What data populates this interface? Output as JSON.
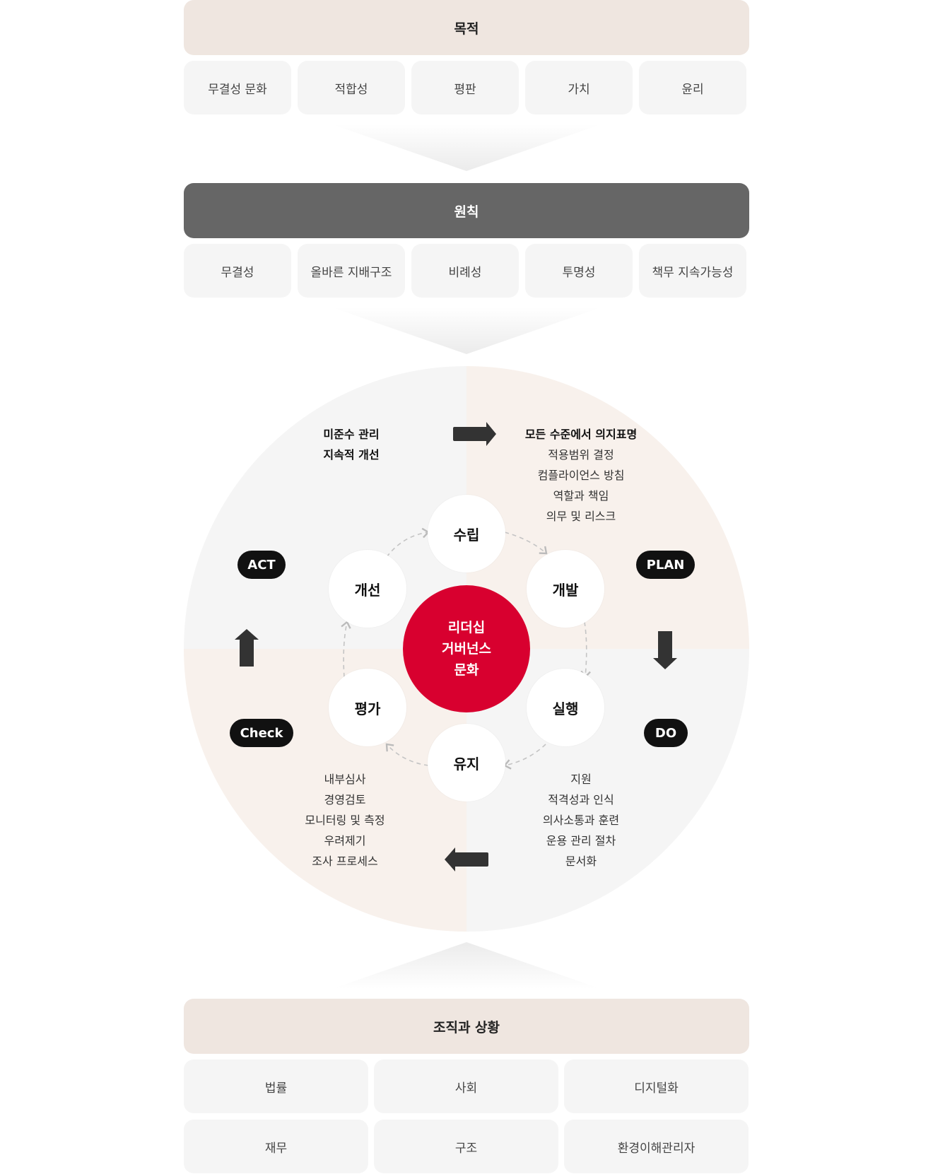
{
  "purpose": {
    "title": "목적",
    "items": [
      "무결성 문화",
      "적합성",
      "평판",
      "가치",
      "윤리"
    ]
  },
  "principles": {
    "title": "원칙",
    "items": [
      "무결성",
      "올바른 지배구조",
      "비례성",
      "투명성",
      "책무 지속가능성"
    ]
  },
  "cycle": {
    "center": [
      "리더십",
      "거버넌스",
      "문화"
    ],
    "nodes": {
      "establish": "수립",
      "develop": "개발",
      "execute": "실행",
      "maintain": "유지",
      "evaluate": "평가",
      "improve": "개선"
    },
    "phases": {
      "plan": "PLAN",
      "do": "DO",
      "check": "Check",
      "act": "ACT"
    },
    "plan_items": [
      "모든 수준에서 의지표명",
      "적용범위 결정",
      "컴플라이언스 방침",
      "역할과 책임",
      "의무 및 리스크"
    ],
    "act_items": [
      "미준수 관리",
      "지속적 개선"
    ],
    "do_items": [
      "지원",
      "적격성과 인식",
      "의사소통과 훈련",
      "운용 관리 절차",
      "문서화"
    ],
    "check_items": [
      "내부심사",
      "경영검토",
      "모니터링 및 측정",
      "우려제기",
      "조사 프로세스"
    ],
    "colors": {
      "red": "#d8002f",
      "quadrant_gray": "#f5f5f5",
      "quadrant_beige": "#f8f1ec",
      "pill": "#111111"
    }
  },
  "context": {
    "title": "조직과 상황",
    "items": [
      "법률",
      "사회",
      "디지털화",
      "재무",
      "구조",
      "환경이해관리자"
    ]
  }
}
